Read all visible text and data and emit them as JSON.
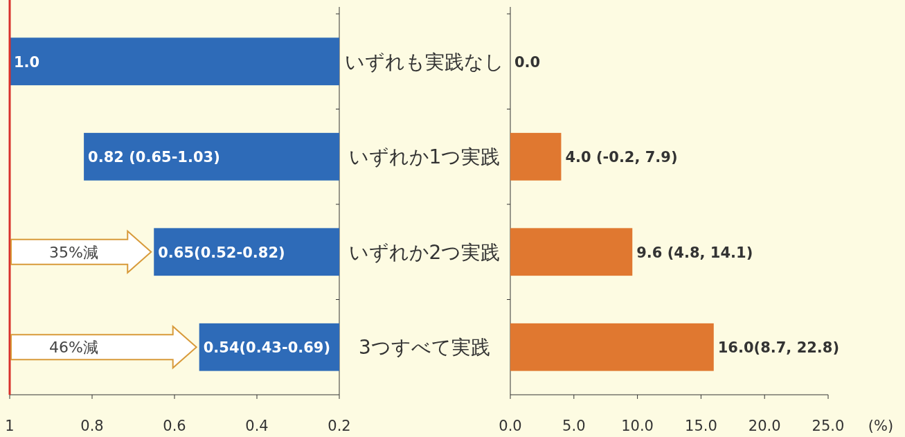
{
  "chart_data": [
    {
      "type": "bar",
      "orientation": "horizontal",
      "categories": [
        "いずれも実践なし",
        "いずれか1つ実践",
        "いずれか2つ実践",
        "3つすべて実践"
      ],
      "values": [
        1.0,
        0.82,
        0.65,
        0.54
      ],
      "value_labels": [
        "1.0",
        "0.82 (0.65-1.03)",
        "0.65(0.52-0.82)",
        "0.54(0.43-0.69)"
      ],
      "color": "#2e6bb8",
      "xlim": [
        1,
        0.2
      ],
      "xticks": [
        1,
        0.8,
        0.6,
        0.4,
        0.2
      ],
      "ref_lines": [
        {
          "axis": "x",
          "value": 1,
          "color": "#d8302a"
        }
      ],
      "annotations": [
        "35%減",
        "46%減"
      ]
    },
    {
      "type": "bar",
      "orientation": "horizontal",
      "values": [
        0.0,
        4.0,
        9.6,
        16.0
      ],
      "value_labels": [
        "0.0",
        "4.0 (-0.2, 7.9)",
        "9.6 (4.8, 14.1)",
        "16.0(8.7, 22.8)"
      ],
      "color": "#e07830",
      "xlim": [
        0,
        25
      ],
      "xticks": [
        {
          "value": 0,
          "label": "0.0"
        },
        {
          "value": 5,
          "label": "5.0"
        },
        {
          "value": 10,
          "label": "10.0"
        },
        {
          "value": 15,
          "label": "15.0"
        },
        {
          "value": 20,
          "label": "20.0"
        },
        {
          "value": 25,
          "label": "25.0"
        }
      ],
      "xlabel": "(%)"
    }
  ]
}
